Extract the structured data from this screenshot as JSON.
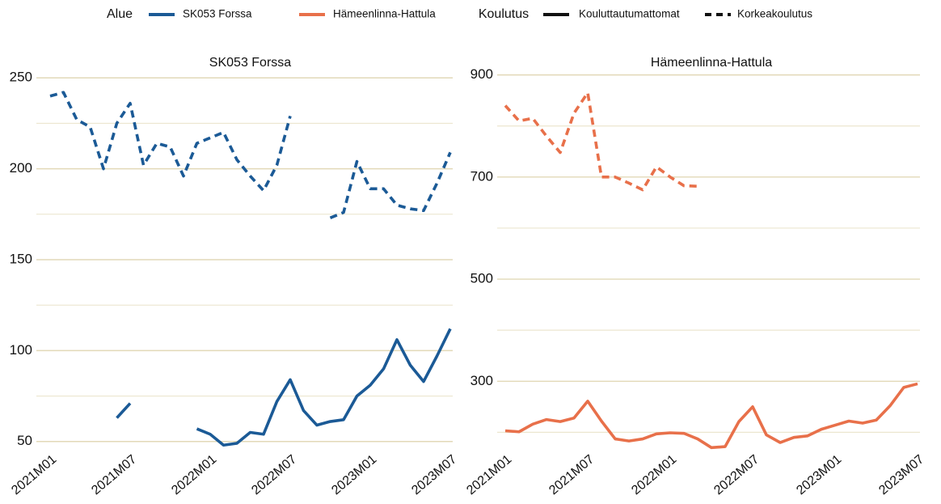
{
  "legend": {
    "groups": [
      {
        "title": "Alue",
        "items": [
          {
            "name": "SK053 Forssa",
            "color": "#1b5a96",
            "style": "solid"
          },
          {
            "name": "Hämeenlinna-Hattula",
            "color": "#e8704a",
            "style": "solid"
          }
        ]
      },
      {
        "title": "Koulutus",
        "items": [
          {
            "name": "Kouluttautumattomat",
            "color": "#111111",
            "style": "solid"
          },
          {
            "name": "Korkeakoulutus",
            "color": "#111111",
            "style": "dashed"
          }
        ]
      }
    ]
  },
  "chart_data": [
    {
      "type": "line",
      "title": "SK053 Forssa",
      "categories": [
        "2021M01",
        null,
        null,
        null,
        null,
        null,
        "2021M07",
        null,
        null,
        null,
        null,
        null,
        "2022M01",
        null,
        null,
        null,
        null,
        null,
        "2022M07",
        null,
        null,
        null,
        null,
        null,
        "2023M01",
        null,
        null,
        null,
        null,
        null,
        "2023M07"
      ],
      "series": [
        {
          "color": "#1b5a96",
          "style": "dashed",
          "values": [
            240,
            242,
            227,
            223,
            200,
            225,
            236,
            202,
            214,
            212,
            196,
            214,
            217,
            220,
            205,
            196,
            188,
            202,
            229,
            null,
            null,
            173,
            176,
            204,
            189,
            189,
            180,
            178,
            177,
            192,
            209
          ]
        },
        {
          "color": "#1b5a96",
          "style": "solid",
          "values": [
            null,
            null,
            null,
            null,
            null,
            63,
            71,
            null,
            null,
            null,
            null,
            57,
            54,
            48,
            49,
            55,
            54,
            72,
            84,
            67,
            59,
            61,
            62,
            75,
            81,
            90,
            106,
            92,
            83,
            97,
            112
          ]
        }
      ],
      "ylim": [
        45,
        255
      ],
      "yticks": [
        50,
        100,
        150,
        200,
        250
      ],
      "minor_yticks": [
        75,
        125,
        175,
        225
      ],
      "grid": true
    },
    {
      "type": "line",
      "title": "Hämeenlinna-Hattula",
      "categories": [
        "2021M01",
        null,
        null,
        null,
        null,
        null,
        "2021M07",
        null,
        null,
        null,
        null,
        null,
        "2022M01",
        null,
        null,
        null,
        null,
        null,
        "2022M07",
        null,
        null,
        null,
        null,
        null,
        "2023M01",
        null,
        null,
        null,
        null,
        null,
        "2023M07"
      ],
      "series": [
        {
          "color": "#e8704a",
          "style": "dashed",
          "values": [
            840,
            810,
            815,
            780,
            748,
            825,
            865,
            700,
            700,
            688,
            675,
            720,
            700,
            683,
            682,
            null,
            null,
            null,
            null,
            null,
            null,
            null,
            null,
            null,
            null,
            null,
            null,
            null,
            null,
            null,
            null
          ]
        },
        {
          "color": "#e8704a",
          "style": "solid",
          "values": [
            203,
            201,
            216,
            225,
            221,
            228,
            261,
            222,
            187,
            183,
            187,
            197,
            199,
            198,
            187,
            170,
            172,
            221,
            250,
            195,
            180,
            190,
            193,
            206,
            214,
            222,
            218,
            224,
            252,
            288,
            295
          ]
        }
      ],
      "ylim": [
        180,
        920
      ],
      "yticks": [
        300,
        500,
        700,
        900
      ],
      "minor_yticks": [
        200,
        400,
        600,
        800
      ],
      "grid": true
    }
  ]
}
